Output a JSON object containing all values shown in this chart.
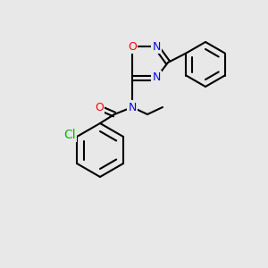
{
  "background_color": "#e8e8e8",
  "bond_color": "#000000",
  "bond_width": 1.5,
  "atom_colors": {
    "N": "#0000ff",
    "O": "#ff0000",
    "Cl": "#00bb00",
    "C": "#000000"
  },
  "font_size": 9,
  "figsize": [
    3.0,
    3.0
  ],
  "dpi": 100
}
